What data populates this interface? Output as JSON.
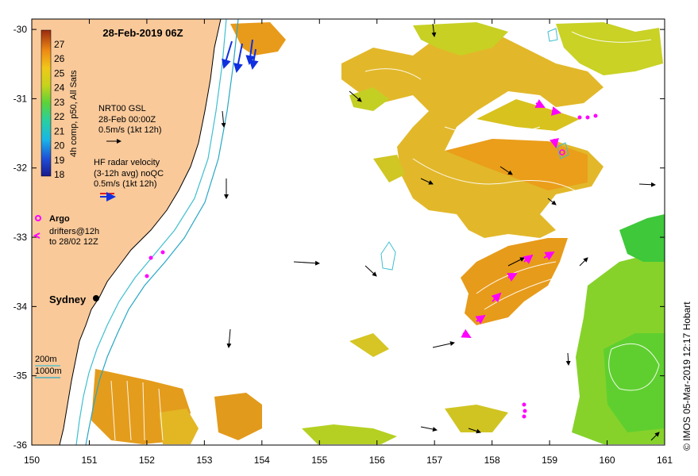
{
  "title": "28-Feb-2019 06Z",
  "colorbar": {
    "label": "4h comp, p50, All Sats",
    "ticks": [
      "27",
      "26",
      "25",
      "24",
      "23",
      "22",
      "21",
      "20",
      "19",
      "18"
    ]
  },
  "gsl_legend": {
    "line1": "NRT00 GSL",
    "line2": "28-Feb 00:00Z",
    "line3": "0.5m/s (1kt 12h)"
  },
  "radar_legend": {
    "line1": "HF radar velocity",
    "line2": "(3-12h avg) noQC",
    "line3": "0.5m/s (1kt 12h)"
  },
  "argo_legend": {
    "argo": "Argo",
    "drifters1": "drifters@12h",
    "drifters2": "to 28/02 12Z"
  },
  "city": "Sydney",
  "depth_legend": {
    "d200": "200m",
    "d1000": "1000m"
  },
  "credit": "© IMOS 05-Mar-2019 12:17 Hobart",
  "axes": {
    "x_ticks": [
      "150",
      "151",
      "152",
      "153",
      "154",
      "155",
      "156",
      "157",
      "158",
      "159",
      "160",
      "161"
    ],
    "y_ticks": [
      "-30",
      "-31",
      "-32",
      "-33",
      "-34",
      "-35",
      "-36"
    ],
    "lon_range": [
      150,
      161
    ],
    "lat_range": [
      -36,
      -29.85
    ]
  },
  "colors": {
    "land": "#f9c99a",
    "sst_warm": "#e8a81e",
    "sst_mid": "#d6c21c",
    "sst_cool": "#7ad12a",
    "isobath_200": "#3fbfd0",
    "isobath_1000": "#27a7c4",
    "argo": "#ff00ff",
    "radar": "#1030e0"
  }
}
